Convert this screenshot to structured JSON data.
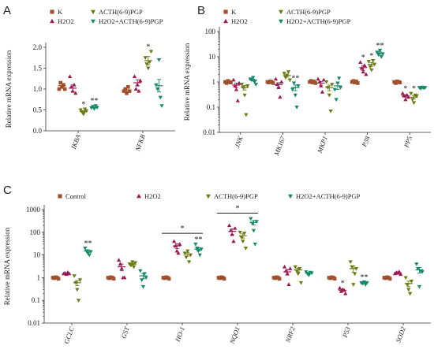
{
  "colors": {
    "k": "#a0512d",
    "h2o2": "#9b1b53",
    "acth": "#6e7a15",
    "combo": "#178a6b"
  },
  "legend_labels": {
    "k": "K",
    "control": "Control",
    "h2o2": "H2O2",
    "acth": "ACTH(6-9)PGP",
    "combo": "H2O2+ACTH(6-9)PGP"
  },
  "chart_data": [
    {
      "id": "A",
      "panel_letter": "A",
      "type": "scatter",
      "ylabel": "Relative mRNA expression",
      "yscale": "linear",
      "ylim": [
        0,
        2.0
      ],
      "yticks": [
        "0.0",
        "0.5",
        "1.0",
        "1.5",
        "2.0"
      ],
      "ytick_values": [
        0,
        0.5,
        1.0,
        1.5,
        2.0
      ],
      "legend": [
        "k",
        "h2o2",
        "acth",
        "combo"
      ],
      "categories": [
        "IKBA",
        "NFKB"
      ],
      "series": [
        {
          "key": "k",
          "points": [
            [
              1.0,
              1.15,
              1.05,
              1.1,
              1.0
            ],
            [
              0.95,
              1.0,
              0.9,
              1.05,
              0.95
            ]
          ],
          "means": [
            1.08,
            0.98
          ],
          "sems": [
            0.04,
            0.04
          ],
          "stars": [
            "",
            ""
          ]
        },
        {
          "key": "h2o2",
          "points": [
            [
              1.3,
              1.05,
              0.95,
              1.1,
              0.9
            ],
            [
              1.3,
              1.0,
              1.1,
              0.95,
              1.2
            ]
          ],
          "means": [
            1.02,
            1.15
          ],
          "sems": [
            0.08,
            0.07
          ],
          "stars": [
            "",
            ""
          ]
        },
        {
          "key": "acth",
          "points": [
            [
              0.5,
              0.45,
              0.4,
              0.52,
              0.48
            ],
            [
              1.75,
              1.6,
              1.5,
              1.65,
              1.9
            ]
          ],
          "means": [
            0.46,
            1.68
          ],
          "sems": [
            0.02,
            0.1
          ],
          "stars": [
            "*",
            "*"
          ]
        },
        {
          "key": "combo",
          "points": [
            [
              0.55,
              0.58,
              0.53,
              0.6,
              0.56
            ],
            [
              1.1,
              1.0,
              1.7,
              0.8,
              0.6
            ]
          ],
          "means": [
            0.56,
            1.08
          ],
          "sems": [
            0.01,
            0.15
          ],
          "stars": [
            "**",
            ""
          ]
        }
      ]
    },
    {
      "id": "B",
      "panel_letter": "B",
      "type": "scatter",
      "ylabel": "Relative mRNA expression",
      "yscale": "log",
      "ylim": [
        0.01,
        100
      ],
      "yticks": [
        "0.01",
        "0.1",
        "1",
        "10",
        "100"
      ],
      "ytick_values": [
        0.01,
        0.1,
        1,
        10,
        100
      ],
      "legend": [
        "k",
        "h2o2",
        "acth",
        "combo"
      ],
      "categories": [
        "JNK",
        "MK167",
        "MKP1",
        "P38",
        "PP5"
      ],
      "series": [
        {
          "key": "k",
          "points": [
            [
              1.0,
              0.9,
              1.1,
              1.0,
              0.95
            ],
            [
              1.0,
              0.95,
              1.05,
              1.0,
              0.9
            ],
            [
              1.0,
              1.1,
              0.95,
              1.05,
              0.9
            ],
            [
              1.0,
              1.1,
              0.95,
              1.05,
              0.9
            ],
            [
              1.0,
              0.9,
              1.05,
              1.0,
              0.95
            ]
          ],
          "means": [
            1.0,
            1.0,
            1.0,
            1.0,
            1.0
          ],
          "sems": [
            0.05,
            0.04,
            0.05,
            0.05,
            0.04
          ],
          "stars": [
            "",
            "",
            "",
            "",
            ""
          ]
        },
        {
          "key": "h2o2",
          "points": [
            [
              1.2,
              0.7,
              0.5,
              0.18,
              0.9
            ],
            [
              1.3,
              0.8,
              0.6,
              0.25,
              1.0
            ],
            [
              1.3,
              1.0,
              0.7,
              0.4,
              1.2
            ],
            [
              6.0,
              3.5,
              2.5,
              4.5,
              2.0
            ],
            [
              0.35,
              0.28,
              0.2,
              0.3,
              0.25
            ]
          ],
          "means": [
            0.75,
            0.78,
            0.9,
            3.7,
            0.28
          ],
          "sems": [
            0.15,
            0.15,
            0.15,
            0.8,
            0.03
          ],
          "stars": [
            "",
            "",
            "",
            "*",
            "*"
          ]
        },
        {
          "key": "acth",
          "points": [
            [
              0.8,
              0.6,
              0.3,
              0.05,
              0.7
            ],
            [
              2.2,
              1.5,
              1.8,
              2.5,
              1.2
            ],
            [
              1.0,
              0.6,
              0.3,
              0.07,
              0.8
            ],
            [
              6.5,
              4.0,
              3.0,
              7.0,
              5.0
            ],
            [
              0.35,
              0.2,
              0.15,
              0.3,
              0.28
            ]
          ],
          "means": [
            0.6,
            1.8,
            0.6,
            5.0,
            0.25
          ],
          "sems": [
            0.12,
            0.25,
            0.15,
            0.8,
            0.04
          ],
          "stars": [
            "",
            "",
            "",
            "*",
            "*"
          ]
        },
        {
          "key": "combo",
          "points": [
            [
              1.3,
              1.2,
              1.5,
              1.0,
              0.8
            ],
            [
              0.5,
              0.9,
              0.3,
              0.1,
              0.7
            ],
            [
              0.5,
              0.2,
              0.9,
              1.4,
              0.6
            ],
            [
              15.0,
              12.0,
              18.0,
              10.0,
              13.0
            ],
            [
              0.6,
              0.55,
              0.62,
              0.58,
              0.6
            ]
          ],
          "means": [
            1.2,
            0.6,
            0.7,
            14.0,
            0.58
          ],
          "sems": [
            0.1,
            0.15,
            0.2,
            1.5,
            0.02
          ],
          "stars": [
            "",
            "**",
            "",
            "**",
            ""
          ]
        }
      ]
    },
    {
      "id": "C",
      "panel_letter": "C",
      "type": "scatter",
      "ylabel": "Relative mRNA expression",
      "yscale": "log",
      "ylim": [
        0.01,
        1000
      ],
      "yticks": [
        "0.01",
        "0.1",
        "1",
        "10",
        "100",
        "1000"
      ],
      "ytick_values": [
        0.01,
        0.1,
        1,
        10,
        100,
        1000
      ],
      "legend": [
        "control",
        "h2o2",
        "acth",
        "combo"
      ],
      "categories": [
        "GCLC",
        "GST",
        "HO-1",
        "NQO1",
        "NRF2",
        "P53",
        "SOD2"
      ],
      "series": [
        {
          "key": "k",
          "points": [
            [
              1.0,
              0.95,
              1.05,
              1.0,
              0.9
            ],
            [
              1.0,
              0.95,
              1.05,
              1.0,
              0.9
            ],
            [
              1.0,
              0.95,
              1.05,
              1.0,
              0.9
            ],
            [
              1.0,
              0.95,
              1.05,
              1.0,
              0.9
            ],
            [
              1.0,
              0.95,
              1.05,
              1.0,
              0.9
            ],
            [
              1.0,
              0.95,
              1.05,
              1.0,
              0.9
            ],
            [
              1.0,
              0.95,
              1.05,
              1.0,
              0.9
            ]
          ],
          "means": [
            1.0,
            1.0,
            1.0,
            1.0,
            1.0,
            1.0,
            1.0
          ],
          "sems": [
            0.03,
            0.03,
            0.03,
            0.03,
            0.03,
            0.03,
            0.03
          ],
          "stars": [
            "",
            "",
            "",
            "",
            "",
            "",
            ""
          ]
        },
        {
          "key": "h2o2",
          "points": [
            [
              1.5,
              1.6,
              1.4,
              1.7,
              1.5
            ],
            [
              6.0,
              4.0,
              2.5,
              1.0,
              1.0
            ],
            [
              40.0,
              25.0,
              15.0,
              12.0,
              30.0
            ],
            [
              200.0,
              120.0,
              80.0,
              40.0,
              150.0
            ],
            [
              3.0,
              2.0,
              1.5,
              0.5,
              2.5
            ],
            [
              0.35,
              0.25,
              0.3,
              0.28,
              0.2
            ],
            [
              1.5,
              1.7,
              1.6,
              1.8,
              1.4
            ]
          ],
          "means": [
            1.5,
            3.0,
            25.0,
            110.0,
            1.8,
            0.28,
            1.6
          ],
          "sems": [
            0.1,
            1.0,
            6.0,
            30.0,
            0.5,
            0.03,
            0.1
          ],
          "stars": [
            "",
            "",
            "",
            "",
            "",
            "*",
            ""
          ]
        },
        {
          "key": "acth",
          "points": [
            [
              1.2,
              0.6,
              0.3,
              0.1,
              0.8
            ],
            [
              4.0,
              3.5,
              5.0,
              3.0,
              4.5
            ],
            [
              12.0,
              8.0,
              15.0,
              5.0,
              10.0
            ],
            [
              100.0,
              60.0,
              40.0,
              90.0,
              20.0
            ],
            [
              3.0,
              2.0,
              1.5,
              2.5,
              0.6
            ],
            [
              5.0,
              3.0,
              0.5,
              1.5,
              2.5
            ],
            [
              1.0,
              0.5,
              0.3,
              0.2,
              0.7
            ]
          ],
          "means": [
            0.6,
            4.0,
            11.0,
            70.0,
            2.2,
            2.5,
            0.55
          ],
          "sems": [
            0.15,
            0.3,
            2.0,
            15.0,
            0.4,
            0.8,
            0.15
          ],
          "stars": [
            "",
            "",
            "",
            "",
            "",
            "",
            ""
          ]
        },
        {
          "key": "combo",
          "points": [
            [
              20.0,
              15.0,
              12.0,
              10.0,
              14.0
            ],
            [
              2.0,
              0.8,
              0.4,
              1.5,
              1.0
            ],
            [
              30.0,
              20.0,
              15.0,
              10.0,
              18.0
            ],
            [
              400.0,
              250.0,
              120.0,
              30.0,
              300.0
            ],
            [
              1.8,
              1.5,
              1.3,
              1.7,
              1.6
            ],
            [
              0.6,
              0.55,
              0.65,
              0.5,
              0.6
            ],
            [
              4.0,
              2.5,
              0.4,
              2.0,
              1.8
            ]
          ],
          "means": [
            15.0,
            1.2,
            18.0,
            270.0,
            1.6,
            0.58,
            2.2
          ],
          "sems": [
            2.0,
            0.3,
            3.0,
            60.0,
            0.1,
            0.03,
            0.6
          ],
          "stars": [
            "**",
            "",
            "**",
            "",
            "",
            "**",
            ""
          ]
        }
      ],
      "bracket_annotations": [
        {
          "from_category": "HO-1",
          "to_category": "HO-1",
          "value": 90,
          "label": "*"
        },
        {
          "from_category": "NQO1",
          "to_category": "NQO1",
          "value": 700,
          "label": "*"
        }
      ]
    }
  ]
}
